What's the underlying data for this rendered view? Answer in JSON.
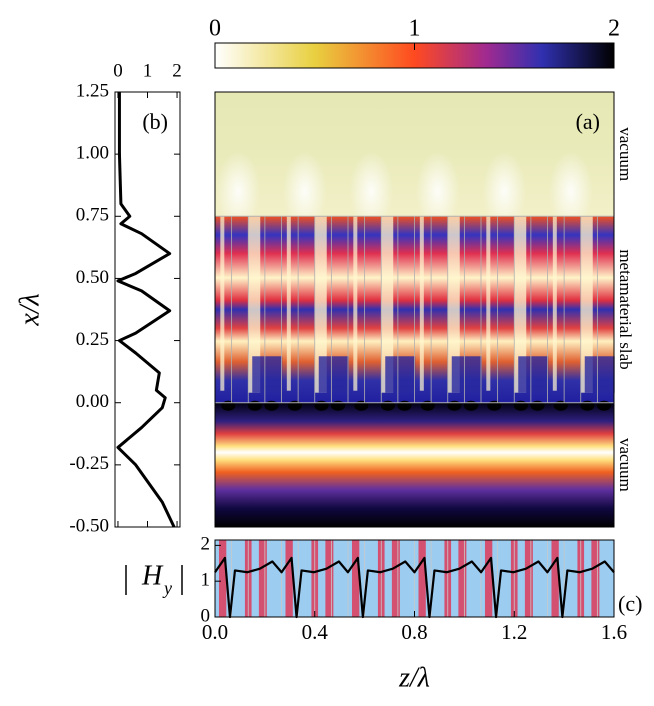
{
  "chart_data": [
    {
      "type": "colorbar",
      "xlim": [
        0,
        2
      ],
      "xticks": [
        0,
        1,
        2
      ]
    },
    {
      "type": "image",
      "label": "(a)",
      "annotations": [
        "vacuum",
        "metamaterial slab",
        "vacuum"
      ],
      "xlim": [
        0,
        1.6
      ],
      "ylim": [
        -0.5,
        1.25
      ]
    },
    {
      "type": "line",
      "label": "(b)",
      "ylabel": "x/λ",
      "color": "#000000",
      "x": [
        0.05,
        0.05,
        0.1,
        0.4,
        0.1,
        0.8,
        1.75,
        0.6,
        0,
        0.8,
        1.75,
        0.6,
        0.05,
        0.6,
        1.4,
        1.3,
        1.6,
        1.5,
        0.8,
        0,
        0.6,
        1.5,
        1.9
      ],
      "y": [
        1.25,
        1.0,
        0.8,
        0.75,
        0.72,
        0.68,
        0.6,
        0.52,
        0.49,
        0.45,
        0.37,
        0.28,
        0.25,
        0.2,
        0.12,
        0.05,
        0.02,
        -0.02,
        -0.1,
        -0.18,
        -0.25,
        -0.4,
        -0.5
      ],
      "xlim": [
        -0.1,
        2.1
      ],
      "xticks": [
        0,
        1,
        2
      ],
      "ylim": [
        -0.5,
        1.25
      ],
      "yticks": [
        1.25,
        {
          "value": 1,
          "label": "1.00"
        },
        0.75,
        {
          "value": 0.5,
          "label": "0.50"
        },
        0.25,
        {
          "value": 0,
          "label": "0.00"
        },
        -0.25,
        {
          "value": -0.5,
          "label": "-0.50"
        }
      ]
    },
    {
      "type": "line",
      "label": "(c)",
      "ylabel": "H",
      "ylabel_sub": "y",
      "xlabel": "z/λ",
      "color": "#000000",
      "x": [
        0,
        0.04,
        0.06,
        0.08,
        0.13,
        0.18,
        0.23,
        0.267,
        0.307,
        0.327,
        0.347,
        0.397,
        0.447,
        0.497,
        0.533,
        0.573,
        0.593,
        0.613,
        0.663,
        0.713,
        0.763,
        0.8,
        0.84,
        0.86,
        0.88,
        0.93,
        0.98,
        1.03,
        1.067,
        1.107,
        1.127,
        1.147,
        1.197,
        1.247,
        1.297,
        1.333,
        1.373,
        1.393,
        1.413,
        1.463,
        1.513,
        1.563,
        1.6
      ],
      "values": [
        1.25,
        1.65,
        0,
        1.3,
        1.25,
        1.35,
        1.55,
        1.25,
        1.65,
        0,
        1.3,
        1.25,
        1.35,
        1.55,
        1.25,
        1.65,
        0,
        1.3,
        1.25,
        1.35,
        1.55,
        1.25,
        1.65,
        0,
        1.3,
        1.25,
        1.35,
        1.55,
        1.25,
        1.65,
        0,
        1.3,
        1.25,
        1.35,
        1.55,
        1.25,
        1.65,
        0,
        1.3,
        1.25,
        1.35,
        1.55,
        1.25
      ],
      "xlim": [
        0,
        1.6
      ],
      "xticks": [
        {
          "value": 0,
          "label": "0.0"
        },
        0.4,
        0.8,
        1.2,
        1.6
      ],
      "ylim": [
        0,
        2.15
      ],
      "yticks": [
        0,
        1,
        2
      ]
    }
  ]
}
